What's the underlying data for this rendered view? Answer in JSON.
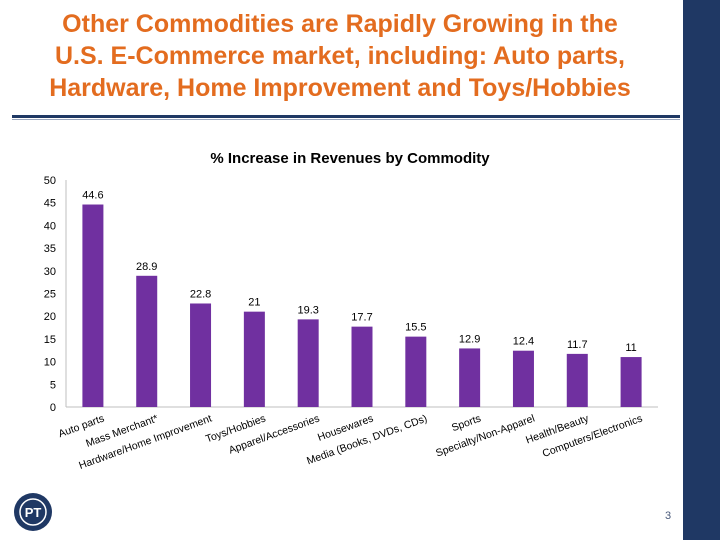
{
  "slide": {
    "title_line1": "Other Commodities are Rapidly Growing in the",
    "title_line2": "U.S.  E-Commerce market, including: Auto parts,",
    "title_line3": "Hardware, Home Improvement and Toys/Hobbies",
    "page_number": "3",
    "colors": {
      "title": "#e36c1f",
      "navy": "#1f3864",
      "bar": "#7030a0"
    }
  },
  "chart_data": {
    "type": "bar",
    "title": "% Increase in Revenues by Commodity",
    "categories": [
      "Auto parts",
      "Mass Merchant*",
      "Hardware/Home Improvement",
      "Toys/Hobbies",
      "Apparel/Accessories",
      "Housewares",
      "Media (Books, DVDs, CDs)",
      "Sports",
      "Specialty/Non-Apparel",
      "Health/Beauty",
      "Computers/Electronics"
    ],
    "values": [
      44.6,
      28.9,
      22.8,
      21,
      19.3,
      17.7,
      15.5,
      12.9,
      12.4,
      11.7,
      11
    ],
    "data_labels": [
      "44.6",
      "28.9",
      "22.8",
      "21",
      "19.3",
      "17.7",
      "15.5",
      "12.9",
      "12.4",
      "11.7",
      "11"
    ],
    "ylim": [
      0,
      50
    ],
    "yticks": [
      0,
      5,
      10,
      15,
      20,
      25,
      30,
      35,
      40,
      45,
      50
    ],
    "grid": false,
    "legend": "none",
    "xlabel": "",
    "ylabel": ""
  }
}
